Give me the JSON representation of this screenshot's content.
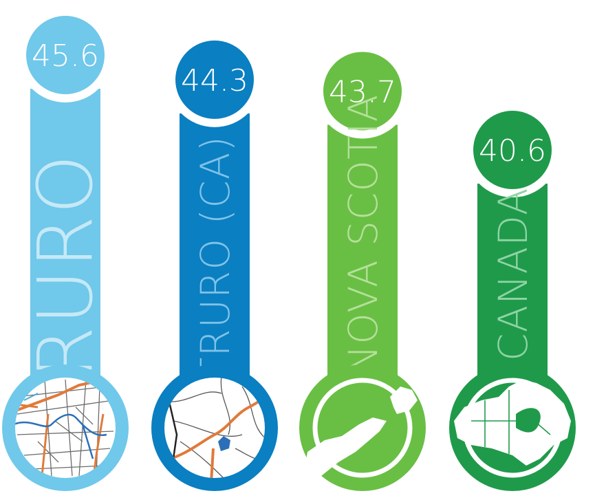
{
  "chart_data": {
    "type": "bar",
    "categories": [
      "TRURO",
      "TRURO (CA)",
      "NOVA SCOTIA",
      "CANADA"
    ],
    "values": [
      45.6,
      44.3,
      43.7,
      40.6
    ],
    "value_labels": [
      "45.6",
      "44.3",
      "43.7",
      "40.6"
    ],
    "colors": [
      "#70c8ea",
      "#0a7fc1",
      "#69bf44",
      "#1f9a4a"
    ],
    "label_colors": [
      "#c6e9f7",
      "#7fc2e8",
      "#b5e09a",
      "#8ed4a5"
    ],
    "icons": [
      "truro-street-map-icon",
      "truro-ca-road-map-icon",
      "nova-scotia-map-icon",
      "canada-map-icon"
    ]
  }
}
